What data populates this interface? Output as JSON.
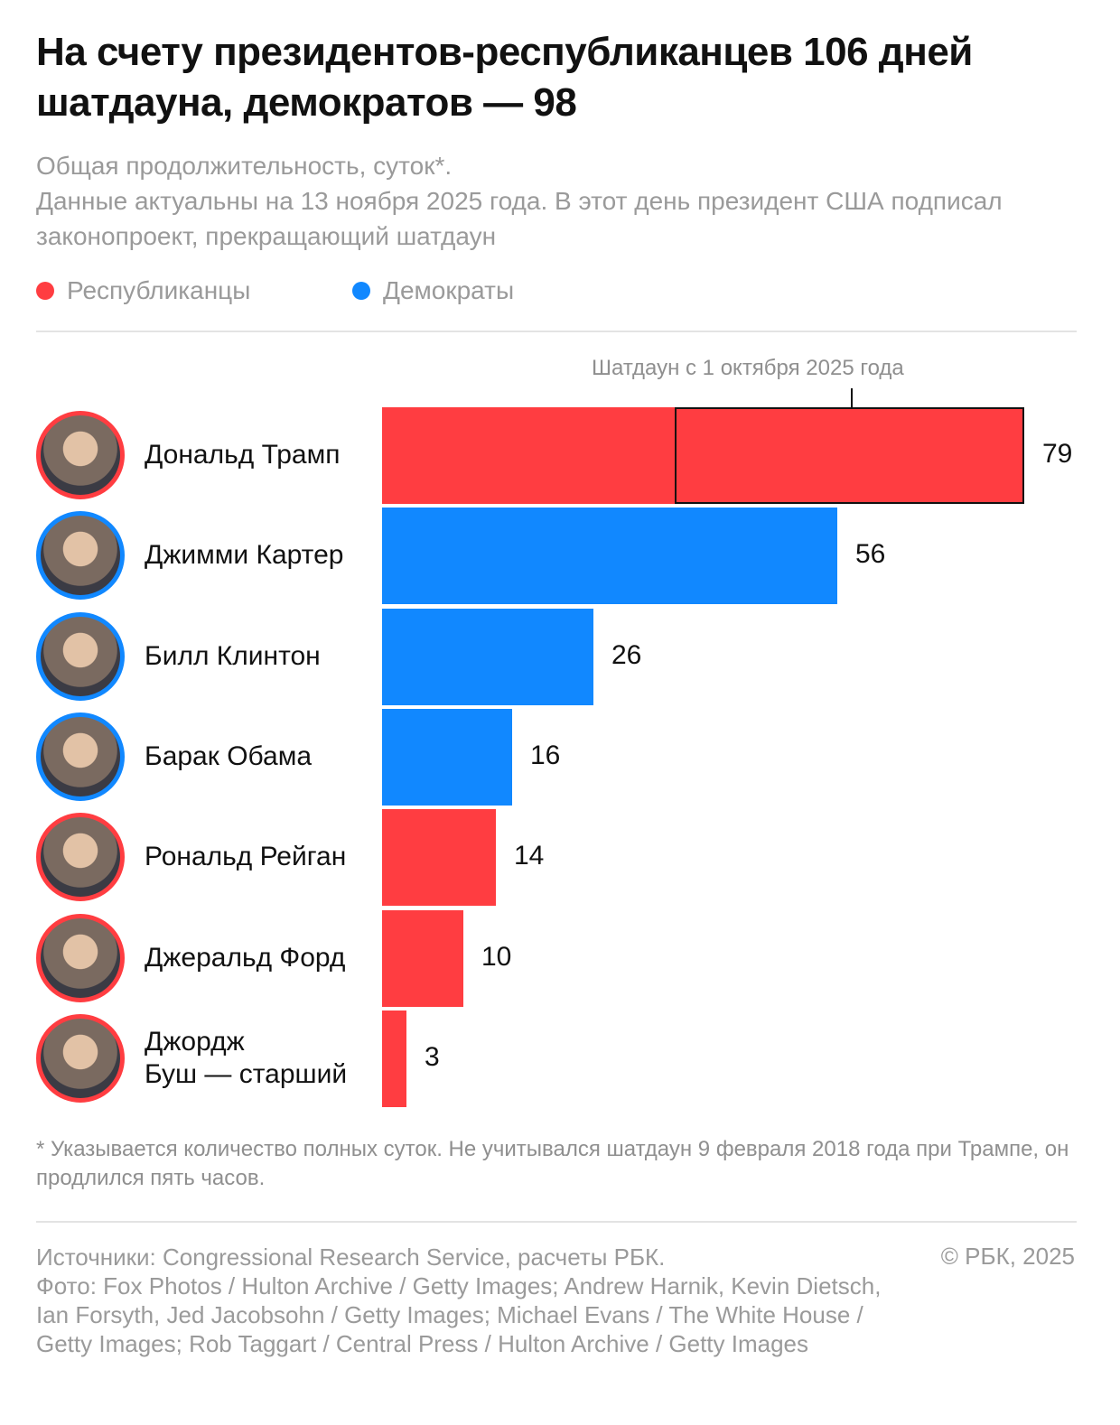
{
  "title": "На счету президентов-республиканцев 106 дней шатдауна, демократов — 98",
  "subtitle": [
    "Общая продолжительность, суток*.",
    "Данные актуальны на 13 ноября 2025 года. В этот день президент США подписал законопроект, прекращающий шатдаун"
  ],
  "legend": [
    {
      "label": "Республиканцы",
      "color": "#FF3D41"
    },
    {
      "label": "Демократы",
      "color": "#1188FF"
    }
  ],
  "annotation": "Шатдаун с 1 октября 2025 года",
  "chart_data": {
    "type": "bar",
    "orientation": "horizontal",
    "categories": [
      "Дональд Трамп",
      "Джимми Картер",
      "Билл Клинтон",
      "Барак Обама",
      "Рональд Рейган",
      "Джеральд Форд",
      "Джордж Буш — старший"
    ],
    "values": [
      79,
      56,
      26,
      16,
      14,
      10,
      3
    ],
    "party": [
      "Республиканцы",
      "Демократы",
      "Демократы",
      "Демократы",
      "Республиканцы",
      "Республиканцы",
      "Республиканцы"
    ],
    "highlight": {
      "category": "Дональд Трамп",
      "label": "Шатдаун с 1 октября 2025 года",
      "from": 36,
      "to": 79
    },
    "xlim": [
      0,
      79
    ],
    "title": "На счету президентов-республиканцев 106 дней шатдауна, демократов — 98",
    "xlabel": "",
    "ylabel": ""
  },
  "names_display": [
    [
      "Дональд Трамп"
    ],
    [
      "Джимми Картер"
    ],
    [
      "Билл Клинтон"
    ],
    [
      "Барак Обама"
    ],
    [
      "Рональд Рейган"
    ],
    [
      "Джеральд Форд"
    ],
    [
      "Джордж",
      "Буш — старший"
    ]
  ],
  "footnote": "* Указывается количество полных суток. Не учитывался шатдаун 9 февраля 2018 года при Трампе, он продлился пять часов.",
  "sources": "Источники: Congressional Research Service, расчеты РБК.",
  "photo_credits": "Фото: Fox Photos / Hulton Archive / Getty Images; Andrew Harnik, Kevin Dietsch, Ian Forsyth, Jed Jacobsohn / Getty Images; Michael Evans / The White House / Getty Images; Rob Taggart / Central Press / Hulton Archive / Getty Images",
  "copyright": "© РБК, 2025"
}
